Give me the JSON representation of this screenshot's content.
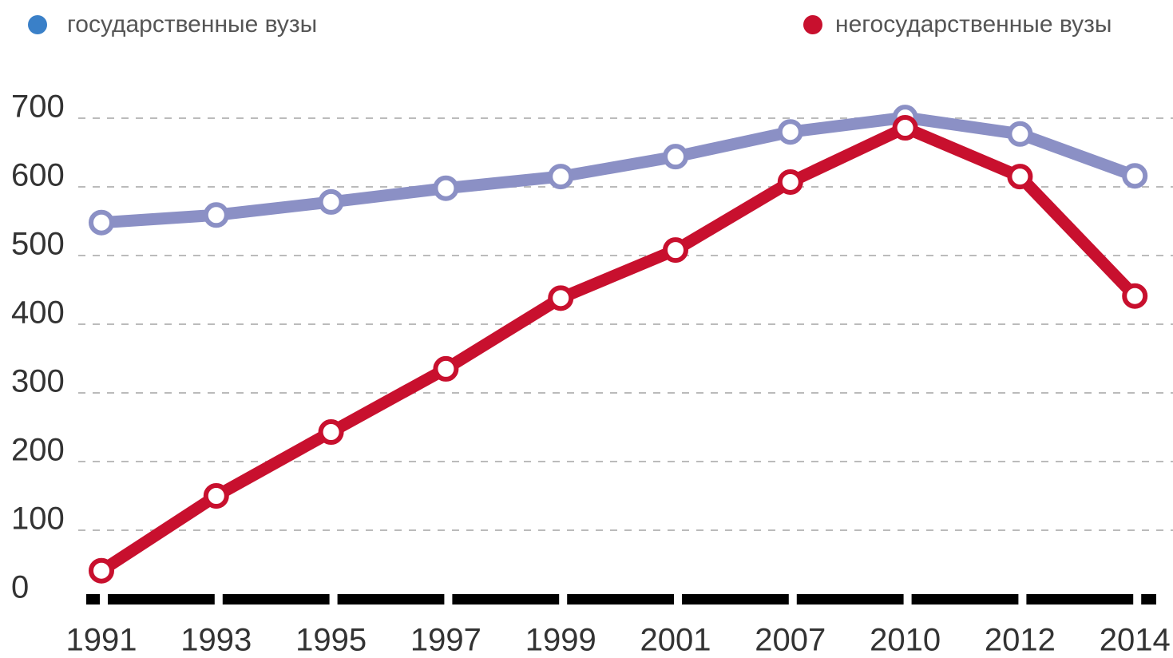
{
  "chart_data": {
    "type": "line",
    "categories": [
      "1991",
      "1993",
      "1995",
      "1997",
      "1999",
      "2001",
      "2007",
      "2010",
      "2012",
      "2014"
    ],
    "series": [
      {
        "name": "государственные вузы",
        "color": "#8b90c5",
        "legend_color": "#3a80c8",
        "values": [
          548,
          559,
          578,
          598,
          615,
          644,
          680,
          701,
          677,
          616
        ]
      },
      {
        "name": "негосударственные вузы",
        "color": "#c8102e",
        "legend_color": "#c8102e",
        "values": [
          41,
          150,
          243,
          335,
          438,
          508,
          607,
          686,
          615,
          441
        ]
      }
    ],
    "ylim": [
      0,
      700
    ],
    "yticks": [
      0,
      100,
      200,
      300,
      400,
      500,
      600,
      700
    ],
    "grid": true
  }
}
